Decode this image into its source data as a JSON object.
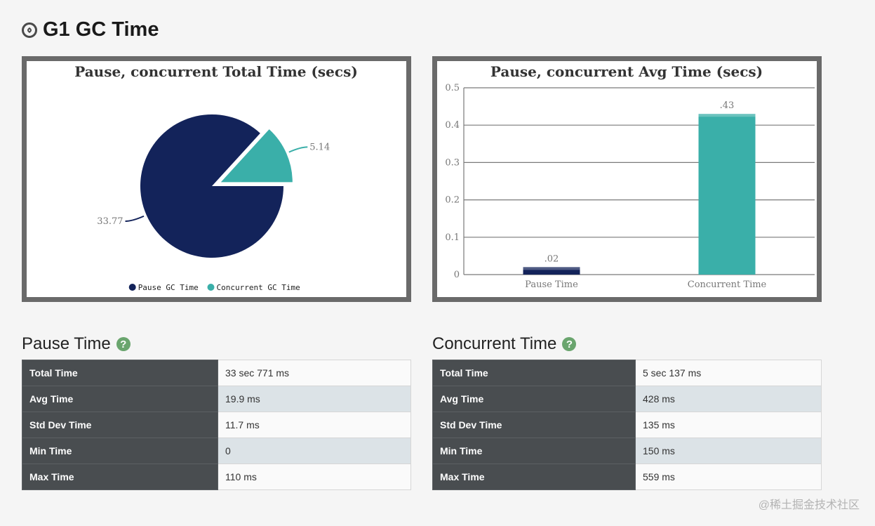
{
  "header": {
    "title": "G1 GC Time",
    "icon": "compass-icon"
  },
  "colors": {
    "navy": "#13235a",
    "teal": "#3aafa9",
    "frame": "#6a6a6a",
    "key_bg": "#494d50",
    "help": "#6aa56e"
  },
  "chart_data": [
    {
      "type": "pie",
      "title": "Pause, concurrent Total Time (secs)",
      "categories": [
        "Pause GC Time",
        "Concurrent GC Time"
      ],
      "values": [
        33.77,
        5.14
      ],
      "value_labels": [
        "33.77",
        "5.14"
      ],
      "legend": {
        "position": "bottom",
        "entries": [
          "Pause GC Time",
          "Concurrent GC Time"
        ]
      }
    },
    {
      "type": "bar",
      "title": "Pause, concurrent Avg Time (secs)",
      "categories": [
        "Pause Time",
        "Concurrent Time"
      ],
      "values": [
        0.02,
        0.43
      ],
      "value_labels": [
        ".02",
        ".43"
      ],
      "ylim": [
        0,
        0.5
      ],
      "yticks": [
        "0",
        "0.1",
        "0.2",
        "0.3",
        "0.4",
        "0.5"
      ],
      "grid": true
    }
  ],
  "pause": {
    "title": "Pause Time",
    "help": "?",
    "rows": [
      {
        "label": "Total Time",
        "value": "33 sec 771 ms"
      },
      {
        "label": "Avg Time",
        "value": "19.9 ms"
      },
      {
        "label": "Std Dev Time",
        "value": "11.7 ms"
      },
      {
        "label": "Min Time",
        "value": "0"
      },
      {
        "label": "Max Time",
        "value": "110 ms"
      }
    ]
  },
  "concurrent": {
    "title": "Concurrent Time",
    "help": "?",
    "rows": [
      {
        "label": "Total Time",
        "value": "5 sec 137 ms"
      },
      {
        "label": "Avg Time",
        "value": "428 ms"
      },
      {
        "label": "Std Dev Time",
        "value": "135 ms"
      },
      {
        "label": "Min Time",
        "value": "150 ms"
      },
      {
        "label": "Max Time",
        "value": "559 ms"
      }
    ]
  },
  "watermark": "@稀土掘金技术社区"
}
